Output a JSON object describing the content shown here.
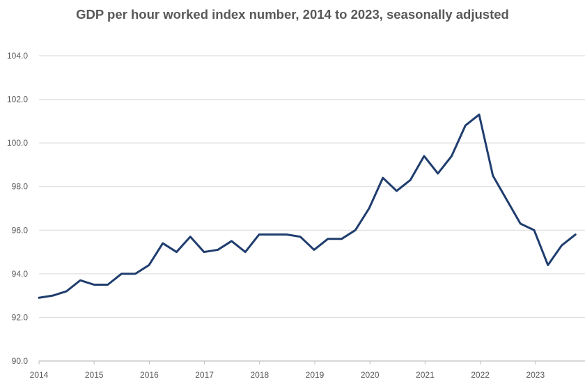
{
  "chart_data": {
    "type": "line",
    "title": "GDP per hour worked index number, 2014 to 2023, seasonally adjusted",
    "xlabel": "",
    "ylabel": "",
    "ylim": [
      90.0,
      104.0
    ],
    "y_ticks": [
      "90.0",
      "92.0",
      "94.0",
      "96.0",
      "98.0",
      "100.0",
      "102.0",
      "104.0"
    ],
    "x_ticks": [
      "2014",
      "2015",
      "2016",
      "2017",
      "2018",
      "2019",
      "2020",
      "2021",
      "2022",
      "2023"
    ],
    "grid": true,
    "legend": "none",
    "line_color": "#1f3d6e",
    "x": [
      "2014 Q1",
      "2014 Q2",
      "2014 Q3",
      "2014 Q4",
      "2015 Q1",
      "2015 Q2",
      "2015 Q3",
      "2015 Q4",
      "2016 Q1",
      "2016 Q2",
      "2016 Q3",
      "2016 Q4",
      "2017 Q1",
      "2017 Q2",
      "2017 Q3",
      "2017 Q4",
      "2018 Q1",
      "2018 Q2",
      "2018 Q3",
      "2018 Q4",
      "2019 Q1",
      "2019 Q2",
      "2019 Q3",
      "2019 Q4",
      "2020 Q1",
      "2020 Q2",
      "2020 Q3",
      "2020 Q4",
      "2021 Q1",
      "2021 Q2",
      "2021 Q3",
      "2021 Q4",
      "2022 Q1",
      "2022 Q2",
      "2022 Q3",
      "2022 Q4",
      "2023 Q1",
      "2023 Q2",
      "2023 Q3",
      "2023 Q4"
    ],
    "series": [
      {
        "values": [
          92.9,
          93.0,
          93.2,
          93.7,
          93.5,
          93.5,
          94.0,
          94.0,
          94.4,
          95.4,
          95.0,
          95.7,
          95.0,
          95.1,
          95.5,
          95.0,
          95.8,
          95.8,
          95.8,
          95.7,
          95.1,
          95.6,
          95.6,
          96.0,
          97.0,
          98.4,
          97.8,
          98.3,
          99.4,
          98.6,
          99.4,
          100.8,
          101.3,
          98.5,
          97.4,
          96.3,
          96.0,
          94.4,
          95.3,
          95.8
        ]
      }
    ]
  }
}
